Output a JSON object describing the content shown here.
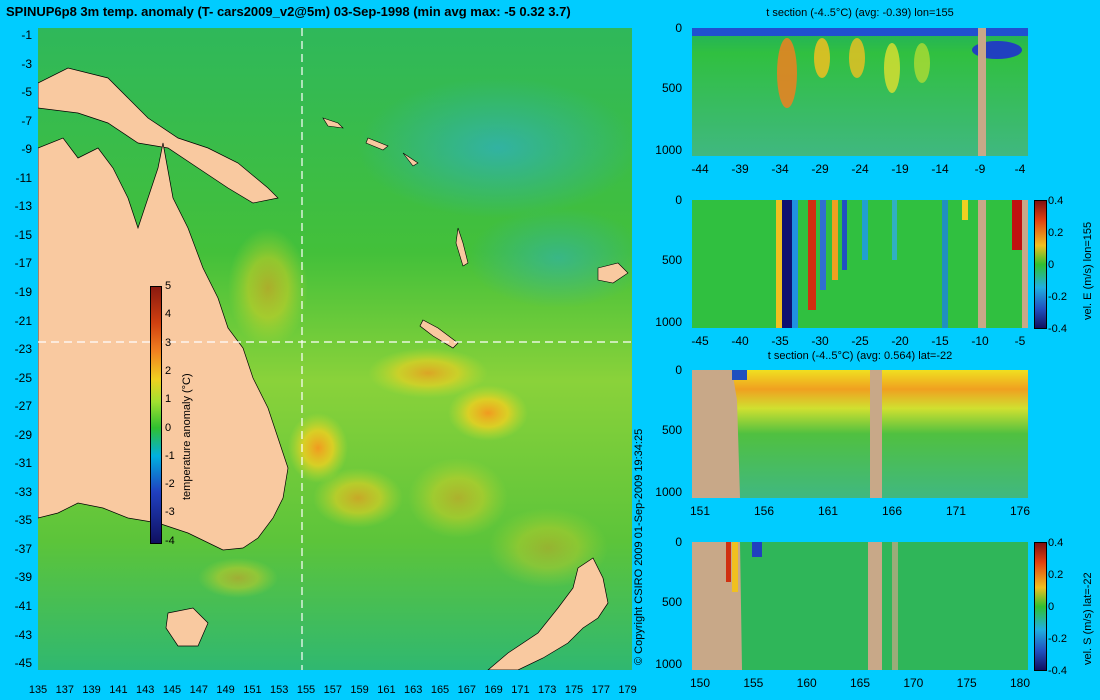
{
  "map": {
    "title": "SPINUP6p8 3m temp. anomaly (T- cars2009_v2@5m) 03-Sep-1998 (min avg max: -5 0.32 3.7)",
    "lat_labels": [
      "-1",
      "-3",
      "-5",
      "-7",
      "-9",
      "-11",
      "-13",
      "-15",
      "-17",
      "-19",
      "-21",
      "-23",
      "-25",
      "-27",
      "-29",
      "-31",
      "-33",
      "-35",
      "-37",
      "-39",
      "-41",
      "-43",
      "-45"
    ],
    "lon_labels": [
      "135",
      "137",
      "139",
      "141",
      "143",
      "145",
      "147",
      "149",
      "151",
      "153",
      "155",
      "157",
      "159",
      "161",
      "163",
      "165",
      "167",
      "169",
      "171",
      "173",
      "175",
      "177",
      "179"
    ],
    "colorbar": {
      "label": "temperature anomaly (°C)",
      "ticks": [
        "5",
        "4",
        "3",
        "2",
        "1",
        "0",
        "-1",
        "-2",
        "-3",
        "-4"
      ]
    },
    "crosshair": {
      "lon": 155,
      "lat": -22
    }
  },
  "copyright": "© Copyright CSIRO 2009   01-Sep-2009 19:34:25",
  "panels": [
    {
      "title": "t section (-4..5°C) (avg: -0.39) lon=155",
      "y_ticks": [
        "0",
        "500",
        "1000"
      ],
      "x_ticks": [
        "-44",
        "-39",
        "-34",
        "-29",
        "-24",
        "-19",
        "-14",
        "-9",
        "-4"
      ]
    },
    {
      "title": "",
      "y_ticks": [
        "0",
        "500",
        "1000"
      ],
      "x_ticks": [
        "-45",
        "-40",
        "-35",
        "-30",
        "-25",
        "-20",
        "-15",
        "-10",
        "-5"
      ],
      "colorbar": {
        "label": "vel. E (m/s) lon=155",
        "ticks": [
          "0.4",
          "0.2",
          "0",
          "-0.2",
          "-0.4"
        ]
      }
    },
    {
      "title": "t section (-4..5°C) (avg: 0.564) lat=-22",
      "y_ticks": [
        "0",
        "500",
        "1000"
      ],
      "x_ticks": [
        "151",
        "156",
        "161",
        "166",
        "171",
        "176"
      ]
    },
    {
      "title": "",
      "y_ticks": [
        "0",
        "500",
        "1000"
      ],
      "x_ticks": [
        "150",
        "155",
        "160",
        "165",
        "170",
        "175",
        "180"
      ],
      "colorbar": {
        "label": "vel. S (m/s) lat=-22",
        "ticks": [
          "0.4",
          "0.2",
          "0",
          "-0.2",
          "-0.4"
        ]
      }
    }
  ],
  "colors": {
    "background": "#00ccff",
    "land": "#f9c9a0",
    "section_land": "#c8a888"
  }
}
